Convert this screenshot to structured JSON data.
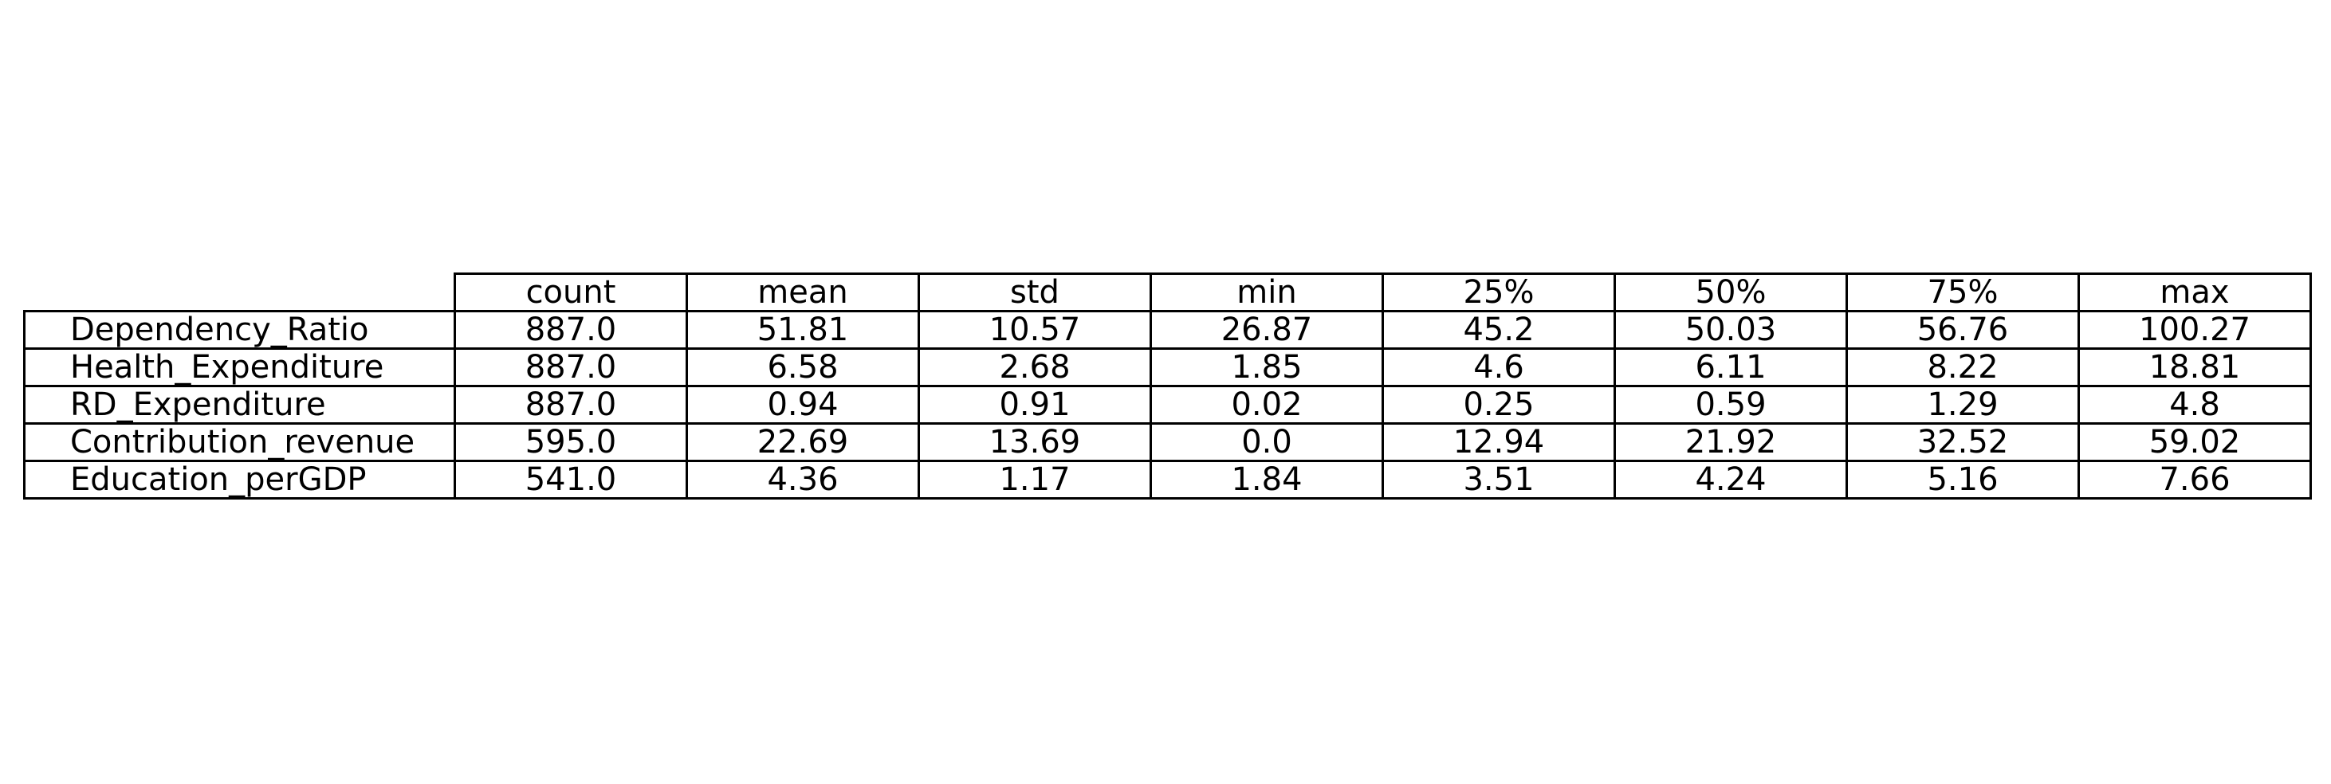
{
  "chart_data": {
    "type": "table",
    "columns": [
      "count",
      "mean",
      "std",
      "min",
      "25%",
      "50%",
      "75%",
      "max"
    ],
    "rows": [
      {
        "label": "Dependency_Ratio",
        "values": [
          "887.0",
          "51.81",
          "10.57",
          "26.87",
          "45.2",
          "50.03",
          "56.76",
          "100.27"
        ]
      },
      {
        "label": "Health_Expenditure",
        "values": [
          "887.0",
          "6.58",
          "2.68",
          "1.85",
          "4.6",
          "6.11",
          "8.22",
          "18.81"
        ]
      },
      {
        "label": "RD_Expenditure",
        "values": [
          "887.0",
          "0.94",
          "0.91",
          "0.02",
          "0.25",
          "0.59",
          "1.29",
          "4.8"
        ]
      },
      {
        "label": "Contribution_revenue",
        "values": [
          "595.0",
          "22.69",
          "13.69",
          "0.0",
          "12.94",
          "21.92",
          "32.52",
          "59.02"
        ]
      },
      {
        "label": "Education_perGDP",
        "values": [
          "541.0",
          "4.36",
          "1.17",
          "1.84",
          "3.51",
          "4.24",
          "5.16",
          "7.66"
        ]
      }
    ]
  }
}
